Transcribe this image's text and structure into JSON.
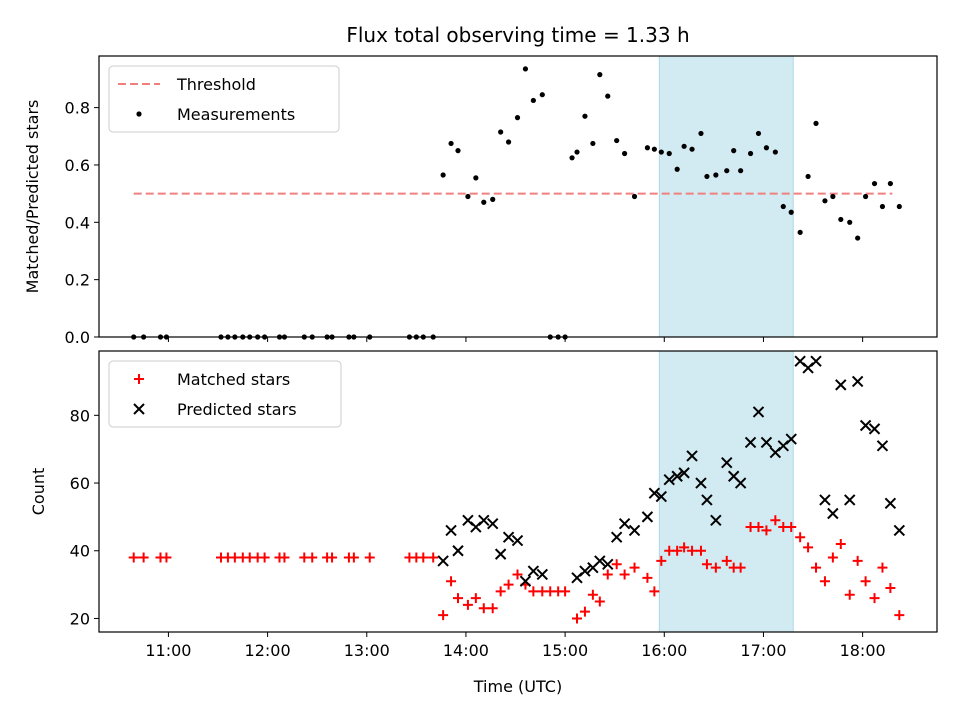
{
  "chart_data": {
    "title": "Flux total observing time = 1.33 h",
    "shared_xlabel": "Time (UTC)",
    "x_ticks": [
      "11:00",
      "12:00",
      "13:00",
      "14:00",
      "15:00",
      "16:00",
      "17:00",
      "18:00"
    ],
    "x_tick_values": [
      11,
      12,
      13,
      14,
      15,
      16,
      17,
      18
    ],
    "xlim": [
      10.3,
      18.75
    ],
    "highlight_span": {
      "x_start": 15.95,
      "x_end": 17.3,
      "color": "#add8e6"
    },
    "panels": [
      {
        "type": "scatter",
        "ylabel": "Matched/Predicted stars",
        "ylim": [
          0,
          0.98
        ],
        "y_ticks": [
          "0.0",
          "0.2",
          "0.4",
          "0.6",
          "0.8"
        ],
        "y_tick_values": [
          0,
          0.2,
          0.4,
          0.6,
          0.8
        ],
        "legend_position": "top-left",
        "series": [
          {
            "name": "Threshold",
            "kind": "dashed-line",
            "color": "#f08080",
            "x": [
              10.65,
              18.3
            ],
            "y": [
              0.5,
              0.5
            ]
          },
          {
            "name": "Measurements",
            "kind": "dot",
            "color": "#000000",
            "x": [
              10.65,
              10.75,
              10.92,
              10.98,
              11.53,
              11.6,
              11.67,
              11.75,
              11.82,
              11.9,
              11.97,
              12.12,
              12.17,
              12.37,
              12.45,
              12.6,
              12.65,
              12.82,
              12.87,
              13.03,
              13.43,
              13.5,
              13.57,
              13.67,
              13.77,
              13.85,
              13.92,
              14.02,
              14.1,
              14.18,
              14.27,
              14.35,
              14.43,
              14.52,
              14.6,
              14.68,
              14.77,
              14.85,
              14.93,
              15.0,
              15.07,
              15.12,
              15.2,
              15.28,
              15.35,
              15.43,
              15.52,
              15.6,
              15.7,
              15.83,
              15.9,
              15.97,
              16.05,
              16.13,
              16.2,
              16.28,
              16.37,
              16.43,
              16.52,
              16.63,
              16.7,
              16.77,
              16.87,
              16.95,
              17.03,
              17.12,
              17.2,
              17.28,
              17.37,
              17.45,
              17.53,
              17.62,
              17.7,
              17.78,
              17.87,
              17.95,
              18.03,
              18.12,
              18.2,
              18.28,
              18.37
            ],
            "y": [
              0,
              0,
              0,
              0,
              0,
              0,
              0,
              0,
              0,
              0,
              0,
              0,
              0,
              0,
              0,
              0,
              0,
              0,
              0,
              0,
              0,
              0,
              0,
              0,
              0.565,
              0.675,
              0.65,
              0.49,
              0.555,
              0.47,
              0.48,
              0.715,
              0.68,
              0.765,
              0.935,
              0.825,
              0.845,
              0,
              0,
              0,
              0.625,
              0.645,
              0.77,
              0.675,
              0.915,
              0.84,
              0.685,
              0.64,
              0.49,
              0.66,
              0.655,
              0.645,
              0.64,
              0.585,
              0.665,
              0.655,
              0.71,
              0.56,
              0.565,
              0.58,
              0.65,
              0.58,
              0.64,
              0.71,
              0.66,
              0.645,
              0.455,
              0.435,
              0.365,
              0.56,
              0.745,
              0.475,
              0.49,
              0.41,
              0.4,
              0.345,
              0.49,
              0.535,
              0.455,
              0.535,
              0.455
            ]
          }
        ]
      },
      {
        "type": "scatter",
        "ylabel": "Count",
        "ylim": [
          16,
          99
        ],
        "y_ticks": [
          "20",
          "40",
          "60",
          "80"
        ],
        "y_tick_values": [
          20,
          40,
          60,
          80
        ],
        "legend_position": "top-left",
        "series": [
          {
            "name": "Matched stars",
            "kind": "plus",
            "color": "#ff0000",
            "x": [
              10.65,
              10.75,
              10.92,
              10.98,
              11.53,
              11.6,
              11.67,
              11.75,
              11.82,
              11.9,
              11.97,
              12.12,
              12.17,
              12.37,
              12.45,
              12.6,
              12.65,
              12.82,
              12.87,
              13.03,
              13.43,
              13.5,
              13.57,
              13.67,
              13.77,
              13.85,
              13.92,
              14.02,
              14.1,
              14.18,
              14.27,
              14.35,
              14.43,
              14.52,
              14.6,
              14.68,
              14.77,
              14.85,
              14.93,
              15.0,
              15.12,
              15.2,
              15.28,
              15.35,
              15.43,
              15.52,
              15.6,
              15.7,
              15.83,
              15.9,
              15.97,
              16.05,
              16.13,
              16.2,
              16.28,
              16.37,
              16.43,
              16.52,
              16.63,
              16.7,
              16.77,
              16.87,
              16.95,
              17.03,
              17.12,
              17.2,
              17.28,
              17.37,
              17.45,
              17.53,
              17.62,
              17.7,
              17.78,
              17.87,
              17.95,
              18.03,
              18.12,
              18.2,
              18.28,
              18.37
            ],
            "y": [
              38,
              38,
              38,
              38,
              38,
              38,
              38,
              38,
              38,
              38,
              38,
              38,
              38,
              38,
              38,
              38,
              38,
              38,
              38,
              38,
              38,
              38,
              38,
              38,
              21,
              31,
              26,
              24,
              26,
              23,
              23,
              28,
              30,
              33,
              30,
              28,
              28,
              28,
              28,
              28,
              20,
              22,
              27,
              25,
              33,
              36,
              33,
              35,
              32,
              28,
              37,
              40,
              40,
              41,
              40,
              40,
              36,
              35,
              37,
              35,
              35,
              47,
              47,
              46,
              49,
              47,
              47,
              44,
              41,
              35,
              31,
              38,
              42,
              27,
              37,
              31,
              26,
              35,
              29,
              21
            ]
          },
          {
            "name": "Predicted stars",
            "kind": "cross",
            "color": "#000000",
            "x": [
              13.77,
              13.85,
              13.92,
              14.02,
              14.1,
              14.18,
              14.27,
              14.35,
              14.43,
              14.52,
              14.6,
              14.68,
              14.77,
              15.12,
              15.2,
              15.28,
              15.35,
              15.43,
              15.52,
              15.6,
              15.7,
              15.83,
              15.9,
              15.97,
              16.05,
              16.13,
              16.2,
              16.28,
              16.37,
              16.43,
              16.52,
              16.63,
              16.7,
              16.77,
              16.87,
              16.95,
              17.03,
              17.12,
              17.2,
              17.28,
              17.37,
              17.45,
              17.53,
              17.62,
              17.7,
              17.78,
              17.87,
              17.95,
              18.03,
              18.12,
              18.2,
              18.28,
              18.37
            ],
            "y": [
              37,
              46,
              40,
              49,
              47,
              49,
              48,
              39,
              44,
              43,
              31,
              34,
              33,
              32,
              34,
              35,
              37,
              36,
              44,
              48,
              46,
              50,
              57,
              56,
              61,
              62,
              63,
              68,
              60,
              55,
              49,
              66,
              62,
              60,
              72,
              81,
              72,
              69,
              71,
              73,
              96,
              94,
              96,
              55,
              51,
              89,
              55,
              90,
              77,
              76,
              71,
              54,
              46
            ]
          }
        ]
      }
    ]
  }
}
